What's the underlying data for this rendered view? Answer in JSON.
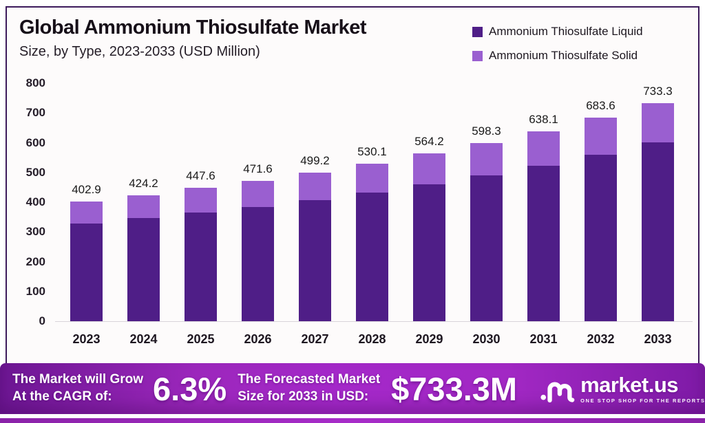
{
  "header": {
    "title": "Global Ammonium Thiosulfate Market",
    "subtitle": "Size, by Type, 2023-2033 (USD Million)"
  },
  "legend": {
    "items": [
      {
        "label": "Ammonium Thiosulfate Liquid",
        "color": "#4f1e87"
      },
      {
        "label": "Ammonium Thiosulfate Solid",
        "color": "#9a5fd0"
      }
    ]
  },
  "chart_data": {
    "type": "bar",
    "subtype": "stacked",
    "title": "Global Ammonium Thiosulfate Market Size, by Type, 2023-2033 (USD Million)",
    "categories": [
      "2023",
      "2024",
      "2025",
      "2026",
      "2027",
      "2028",
      "2029",
      "2030",
      "2031",
      "2032",
      "2033"
    ],
    "series": [
      {
        "name": "Ammonium Thiosulfate Liquid",
        "color": "#4f1e87",
        "values": [
          328.4,
          345.8,
          364.2,
          384.5,
          406.9,
          432.6,
          460.9,
          489.5,
          521.9,
          559.7,
          601.1
        ]
      },
      {
        "name": "Ammonium Thiosulfate Solid",
        "color": "#9a5fd0",
        "values": [
          74.5,
          78.4,
          83.4,
          87.1,
          92.3,
          97.5,
          103.3,
          108.8,
          116.2,
          123.9,
          132.2
        ]
      }
    ],
    "totals": [
      402.9,
      424.2,
      447.6,
      471.6,
      499.2,
      530.1,
      564.2,
      598.3,
      638.1,
      683.6,
      733.3
    ],
    "ylim": [
      0,
      800
    ],
    "yticks": [
      0,
      100,
      200,
      300,
      400,
      500,
      600,
      700,
      800
    ],
    "grid": false,
    "legend_position": "top-right"
  },
  "banner": {
    "cagr_text_line1": "The Market will Grow",
    "cagr_text_line2": "At the CAGR of:",
    "cagr_value": "6.3%",
    "forecast_text_line1": "The Forecasted Market",
    "forecast_text_line2": "Size for 2033 in USD:",
    "forecast_value": "$733.3M",
    "brand_name": "market.us",
    "brand_tagline": "ONE STOP SHOP FOR THE REPORTS"
  }
}
